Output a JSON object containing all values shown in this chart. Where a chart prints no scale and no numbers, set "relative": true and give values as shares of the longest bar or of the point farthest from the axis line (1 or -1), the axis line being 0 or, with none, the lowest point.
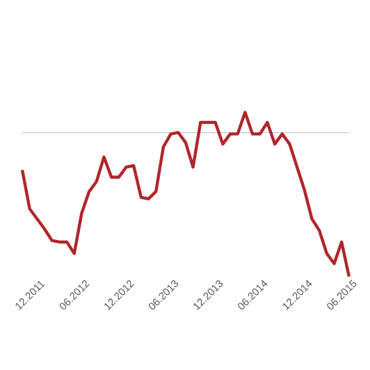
{
  "chart_data": {
    "type": "line",
    "relative": true,
    "color": "#b0262b",
    "categories": [
      null,
      "12.2011",
      null,
      null,
      null,
      null,
      null,
      "06.2012",
      null,
      null,
      null,
      null,
      null,
      "12.2012",
      null,
      null,
      null,
      null,
      null,
      "06.2013",
      null,
      null,
      null,
      null,
      null,
      "12.2013",
      null,
      null,
      null,
      null,
      null,
      "06.2014",
      null,
      null,
      null,
      null,
      null,
      "12.2014",
      null,
      null,
      null,
      null,
      null,
      "06.2015",
      null
    ],
    "values": [
      -0.26,
      -0.53,
      -0.6,
      -0.67,
      -0.75,
      -0.76,
      -0.76,
      -0.84,
      -0.56,
      -0.41,
      -0.34,
      -0.17,
      -0.31,
      -0.31,
      -0.24,
      -0.23,
      -0.45,
      -0.46,
      -0.41,
      -0.1,
      -0.01,
      0,
      -0.07,
      -0.24,
      0.07,
      0.07,
      0.07,
      -0.08,
      -0.01,
      -0.01,
      0.14,
      -0.01,
      -0.01,
      0.07,
      -0.08,
      -0.01,
      -0.08,
      -0.24,
      -0.4,
      -0.6,
      -0.68,
      -0.84,
      -0.91,
      -0.76,
      -1
    ],
    "marker": "none",
    "line_style": "solid"
  }
}
